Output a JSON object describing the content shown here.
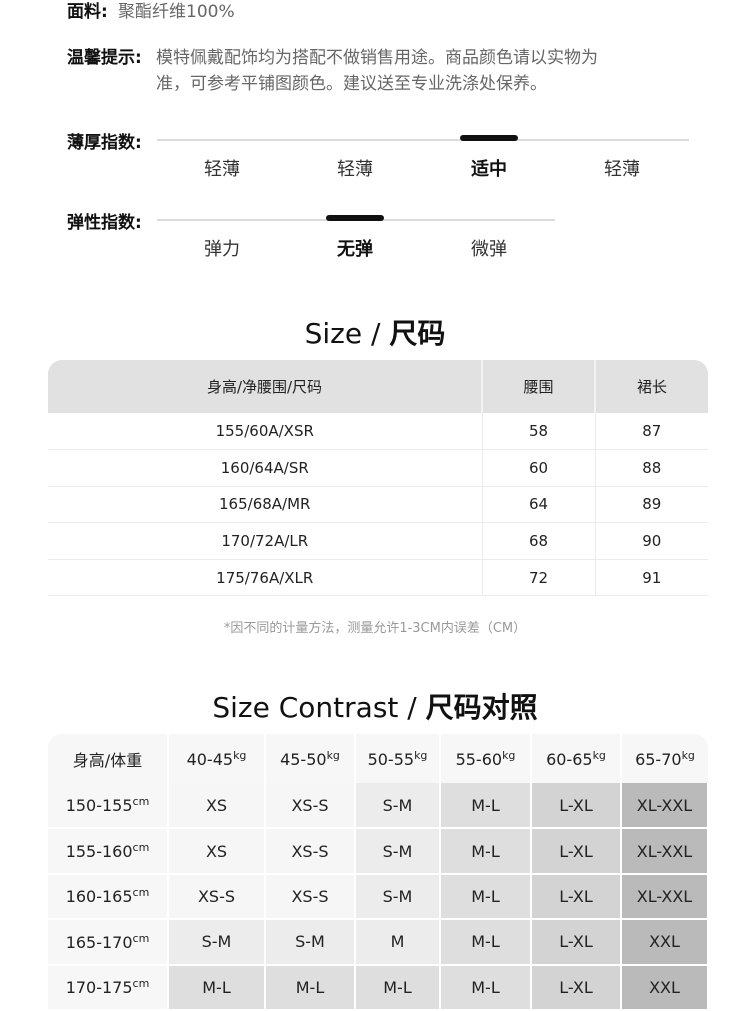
{
  "fabric": {
    "label": "面料:",
    "value": "聚酯纤维100%"
  },
  "tip": {
    "label": "温馨提示:",
    "line1": "模特佩戴配饰均为搭配不做销售用途。商品颜色请以实物为",
    "line2": "准，可参考平铺图颜色。建议送至专业洗涤处保养。"
  },
  "thickness": {
    "label": "薄厚指数:",
    "options": [
      "轻薄",
      "轻薄",
      "适中",
      "轻薄"
    ],
    "selected_index": 2
  },
  "elasticity": {
    "label": "弹性指数:",
    "options": [
      "弹力",
      "无弹",
      "微弹"
    ],
    "selected_index": 1
  },
  "size_table": {
    "title_en": "Size / ",
    "title_cn": "尺码",
    "headers": [
      "身高/净腰围/尺码",
      "腰围",
      "裙长"
    ],
    "rows": [
      [
        "155/60A/XSR",
        "58",
        "87"
      ],
      [
        "160/64A/SR",
        "60",
        "88"
      ],
      [
        "165/68A/MR",
        "64",
        "89"
      ],
      [
        "170/72A/LR",
        "68",
        "90"
      ],
      [
        "175/76A/XLR",
        "72",
        "91"
      ]
    ],
    "note": "*因不同的计量方法，测量允许1-3CM内误差（CM）"
  },
  "contrast_table": {
    "title_en": "Size Contrast / ",
    "title_cn": "尺码对照",
    "corner": "身高/体重",
    "weight_unit": "kg",
    "height_unit": "cm",
    "weights": [
      "40-45",
      "45-50",
      "50-55",
      "55-60",
      "60-65",
      "65-70"
    ],
    "heights": [
      "150-155",
      "155-160",
      "160-165",
      "165-170",
      "170-175"
    ],
    "cells": [
      [
        "XS",
        "XS-S",
        "S-M",
        "M-L",
        "L-XL",
        "XL-XXL"
      ],
      [
        "XS",
        "XS-S",
        "S-M",
        "M-L",
        "L-XL",
        "XL-XXL"
      ],
      [
        "XS-S",
        "XS-S",
        "S-M",
        "M-L",
        "L-XL",
        "XL-XXL"
      ],
      [
        "S-M",
        "S-M",
        "M",
        "M-L",
        "L-XL",
        "XXL"
      ],
      [
        "M-L",
        "M-L",
        "M-L",
        "M-L",
        "L-XL",
        "XXL"
      ]
    ],
    "shades": {
      "XS": "#f6f6f6",
      "XS-S": "#f6f6f6",
      "S-M": "#ececec",
      "M": "#ececec",
      "M-L": "#dedede",
      "L-XL": "#d3d3d3",
      "XL-XXL": "#bababa",
      "XXL": "#bababa"
    }
  }
}
